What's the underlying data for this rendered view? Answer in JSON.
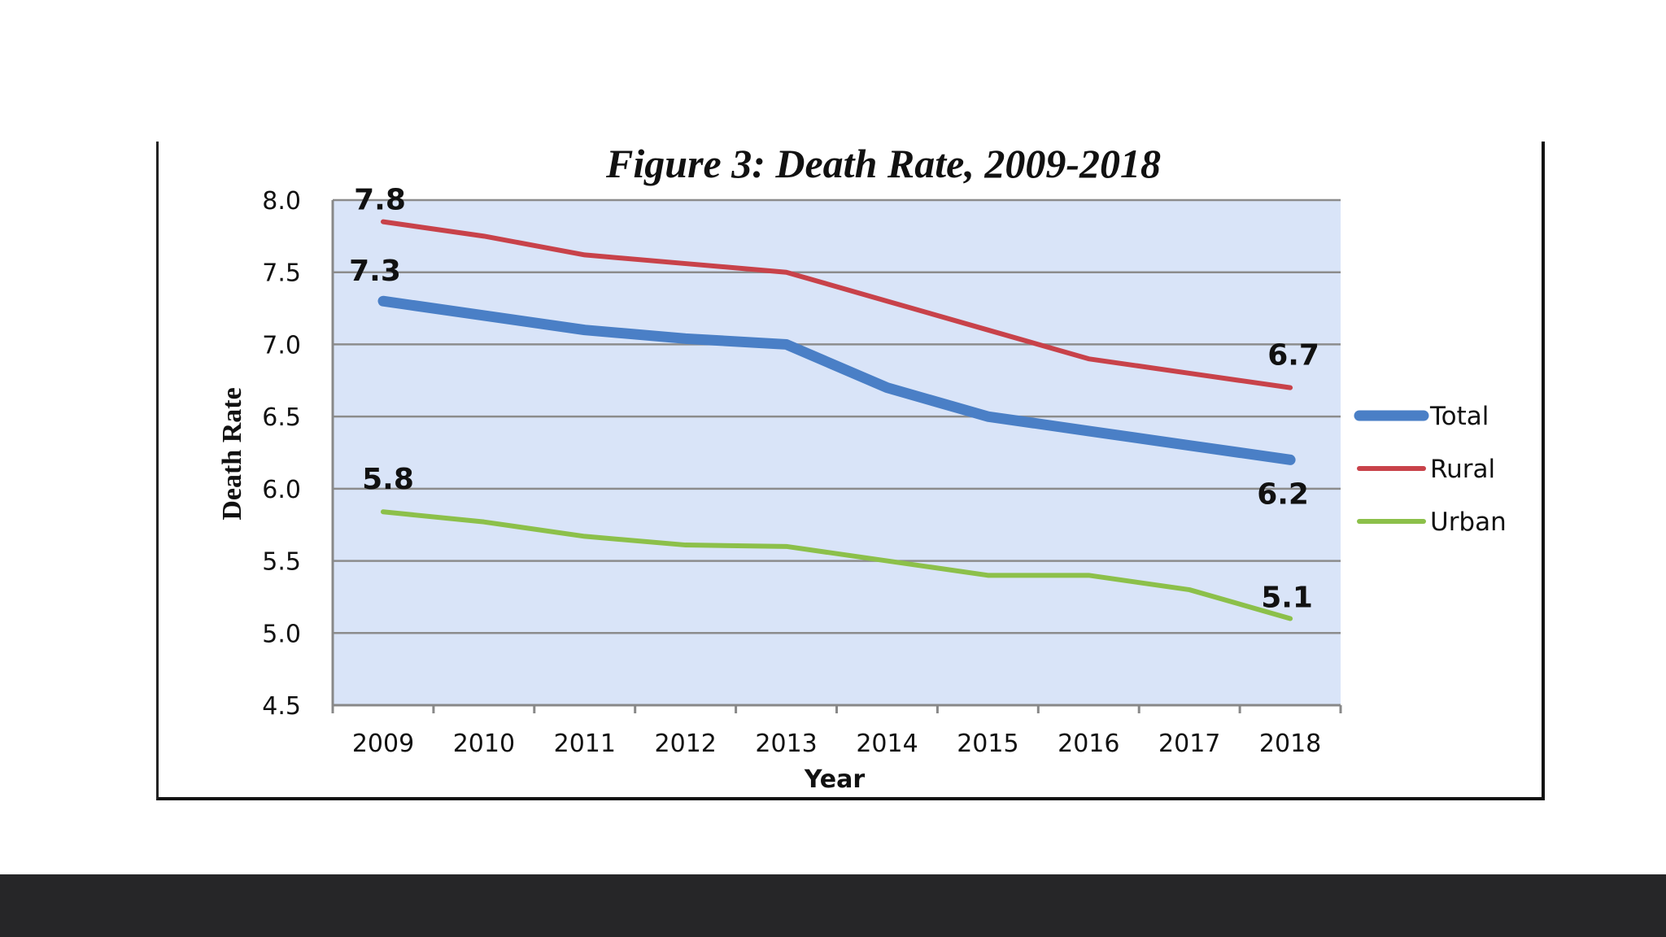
{
  "chart_data": {
    "type": "line",
    "title": "Figure 3: Death Rate, 2009-2018",
    "xlabel": "Year",
    "ylabel": "Death Rate",
    "ylim": [
      4.5,
      8.0
    ],
    "y_ticks": [
      "4.5",
      "5.0",
      "5.5",
      "6.0",
      "6.5",
      "7.0",
      "7.5",
      "8.0"
    ],
    "categories": [
      "2009",
      "2010",
      "2011",
      "2012",
      "2013",
      "2014",
      "2015",
      "2016",
      "2017",
      "2018"
    ],
    "grid": true,
    "legend_position": "right",
    "series": [
      {
        "name": "Total",
        "color": "#4a7fc6",
        "values": [
          7.3,
          7.2,
          7.1,
          7.04,
          7.0,
          6.7,
          6.5,
          6.4,
          6.3,
          6.2
        ]
      },
      {
        "name": "Rural",
        "color": "#c8424a",
        "values": [
          7.85,
          7.75,
          7.62,
          7.56,
          7.5,
          7.3,
          7.1,
          6.9,
          6.8,
          6.7
        ]
      },
      {
        "name": "Urban",
        "color": "#8cc04a",
        "values": [
          5.84,
          5.77,
          5.67,
          5.61,
          5.6,
          5.5,
          5.4,
          5.4,
          5.3,
          5.1
        ]
      }
    ],
    "data_labels": [
      {
        "text": "7.8",
        "series": "Rural",
        "category": "2009"
      },
      {
        "text": "7.3",
        "series": "Total",
        "category": "2009"
      },
      {
        "text": "5.8",
        "series": "Urban",
        "category": "2009"
      },
      {
        "text": "6.7",
        "series": "Rural",
        "category": "2018"
      },
      {
        "text": "6.2",
        "series": "Total",
        "category": "2018"
      },
      {
        "text": "5.1",
        "series": "Urban",
        "category": "2018"
      }
    ]
  },
  "style": {
    "plot_background": "#d9e4f8",
    "gridline_color": "#8c8c8c",
    "bottom_bar_color": "#262628"
  }
}
